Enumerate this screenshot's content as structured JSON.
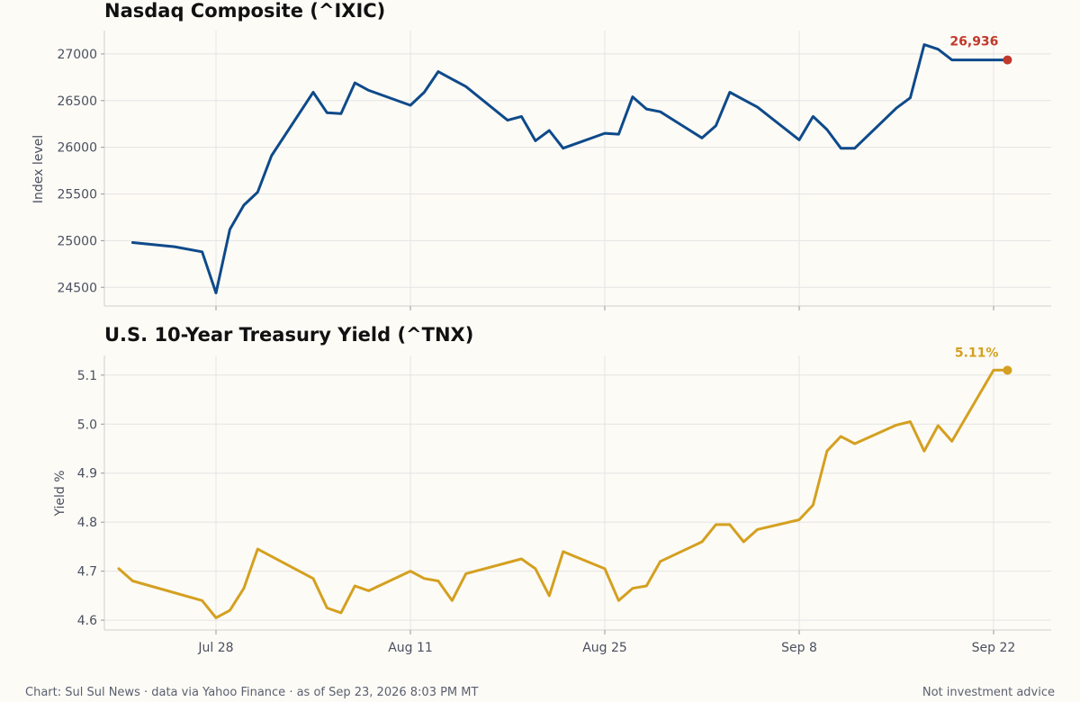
{
  "chart_data": [
    {
      "type": "line",
      "title": "Nasdaq Composite (^IXIC)",
      "ylabel": "Index level",
      "xlabel": "",
      "ylim": [
        24300,
        27250
      ],
      "yticks": [
        24500,
        25000,
        25500,
        26000,
        26500,
        27000
      ],
      "grid": true,
      "color": "#0e4a8a",
      "end_marker_color": "#c0392b",
      "end_label": "26,936",
      "series": [
        {
          "x": [
            "Jul 22",
            "Jul 25",
            "Jul 27",
            "Jul 28",
            "Jul 29",
            "Jul 30",
            "Jul 31",
            "Aug 1",
            "Aug 4",
            "Aug 5",
            "Aug 6",
            "Aug 7",
            "Aug 8",
            "Aug 11",
            "Aug 12",
            "Aug 13",
            "Aug 14",
            "Aug 15",
            "Aug 18",
            "Aug 19",
            "Aug 20",
            "Aug 21",
            "Aug 22",
            "Aug 25",
            "Aug 26",
            "Aug 27",
            "Aug 28",
            "Aug 29",
            "Sep 1",
            "Sep 2",
            "Sep 3",
            "Sep 4",
            "Sep 5",
            "Sep 8",
            "Sep 9",
            "Sep 10",
            "Sep 11",
            "Sep 12",
            "Sep 15",
            "Sep 16",
            "Sep 17",
            "Sep 18",
            "Sep 19",
            "Sep 22",
            "Sep 23"
          ],
          "values": [
            24980,
            24935,
            24880,
            24440,
            25120,
            25380,
            25520,
            25910,
            26590,
            26370,
            26360,
            26690,
            26610,
            26450,
            26590,
            26810,
            26730,
            26650,
            26290,
            26330,
            26070,
            26180,
            25990,
            26150,
            26140,
            26540,
            26410,
            26380,
            26100,
            26230,
            26590,
            26510,
            26430,
            26080,
            26330,
            26190,
            25990,
            25990,
            26420,
            26530,
            27100,
            27050,
            26936,
            26936,
            26936
          ]
        }
      ]
    },
    {
      "type": "line",
      "title": "U.S. 10-Year Treasury Yield (^TNX)",
      "ylabel": "Yield %",
      "xlabel": "",
      "ylim": [
        4.58,
        5.14
      ],
      "yticks": [
        4.6,
        4.7,
        4.8,
        4.9,
        5.0,
        5.1
      ],
      "grid": true,
      "color": "#d4a020",
      "end_marker_color": "#d4a020",
      "end_label": "5.11%",
      "series": [
        {
          "x": [
            "Jul 21",
            "Jul 22",
            "Jul 27",
            "Jul 28",
            "Jul 29",
            "Jul 30",
            "Jul 31",
            "Aug 4",
            "Aug 5",
            "Aug 6",
            "Aug 7",
            "Aug 8",
            "Aug 11",
            "Aug 12",
            "Aug 13",
            "Aug 14",
            "Aug 15",
            "Aug 19",
            "Aug 20",
            "Aug 21",
            "Aug 22",
            "Aug 25",
            "Aug 26",
            "Aug 27",
            "Aug 28",
            "Aug 29",
            "Sep 1",
            "Sep 2",
            "Sep 3",
            "Sep 4",
            "Sep 5",
            "Sep 8",
            "Sep 9",
            "Sep 10",
            "Sep 11",
            "Sep 12",
            "Sep 15",
            "Sep 16",
            "Sep 17",
            "Sep 18",
            "Sep 19",
            "Sep 22",
            "Sep 23"
          ],
          "values": [
            4.705,
            4.68,
            4.64,
            4.605,
            4.62,
            4.665,
            4.745,
            4.685,
            4.625,
            4.615,
            4.67,
            4.66,
            4.7,
            4.685,
            4.68,
            4.64,
            4.695,
            4.725,
            4.705,
            4.65,
            4.74,
            4.705,
            4.64,
            4.665,
            4.67,
            4.72,
            4.76,
            4.795,
            4.795,
            4.76,
            4.785,
            4.805,
            4.835,
            4.945,
            4.975,
            4.96,
            4.998,
            5.005,
            4.945,
            4.997,
            4.965,
            5.11,
            5.11
          ]
        }
      ]
    }
  ],
  "x_axis": {
    "ticks": [
      "Jul 28",
      "Aug 11",
      "Aug 25",
      "Sep 8",
      "Sep 22"
    ]
  },
  "footer": {
    "left": "Chart: Sul Sul News · data via Yahoo Finance · as of Sep 23, 2026 8:03 PM MT",
    "right": "Not investment advice"
  }
}
